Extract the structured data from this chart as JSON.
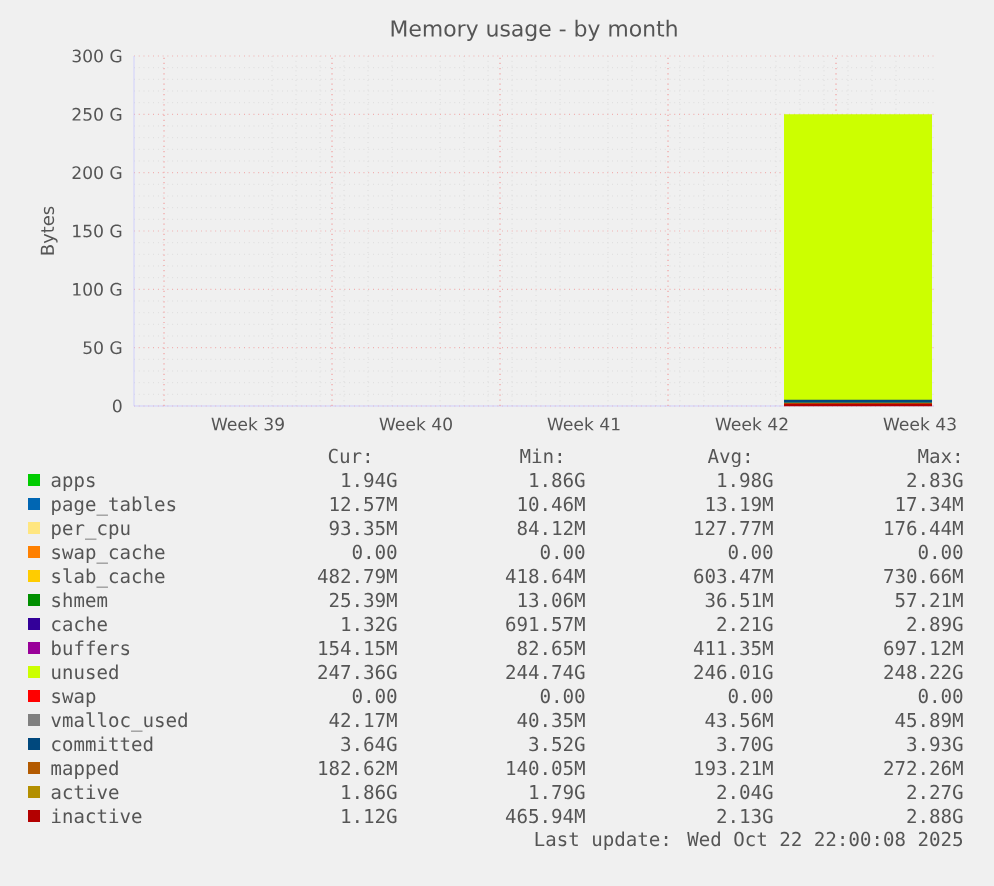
{
  "chart_data": {
    "type": "area",
    "title": "Memory usage - by month",
    "ylabel": "Bytes",
    "grid": true,
    "legend": "bottom",
    "xlim": [
      "2025-09-20T18:00",
      "2025-10-24T02:00"
    ],
    "ylim": [
      0,
      300
    ],
    "xticks": [
      {
        "value": "2025-09-22T00:00",
        "label": null
      },
      {
        "value": "2025-09-25T12:00",
        "label": "Week 39"
      },
      {
        "value": "2025-09-29T00:00",
        "label": null
      },
      {
        "value": "2025-10-02T12:00",
        "label": "Week 40"
      },
      {
        "value": "2025-10-06T00:00",
        "label": null
      },
      {
        "value": "2025-10-09T12:00",
        "label": "Week 41"
      },
      {
        "value": "2025-10-13T00:00",
        "label": null
      },
      {
        "value": "2025-10-16T12:00",
        "label": "Week 42"
      },
      {
        "value": "2025-10-20T00:00",
        "label": null
      },
      {
        "value": "2025-10-23T12:00",
        "label": "Week 43"
      }
    ],
    "yticks": [
      0,
      {
        "value": 50,
        "label": "50 G"
      },
      {
        "value": 100,
        "label": "100 G"
      },
      {
        "value": 150,
        "label": "150 G"
      },
      {
        "value": 200,
        "label": "200 G"
      },
      {
        "value": 250,
        "label": "250 G"
      },
      {
        "value": 300,
        "label": "300 G"
      }
    ],
    "x": [
      "2025-10-17T20:00",
      "2025-10-20T16:00",
      "2025-10-23T11:00",
      "2025-10-24T00:00"
    ],
    "series": [
      {
        "name": "apps",
        "color": "#00cc00",
        "values": [
          null,
          null,
          null,
          null
        ]
      },
      {
        "name": "page_tables",
        "color": "#0066b3",
        "values": [
          null,
          null,
          null,
          null
        ]
      },
      {
        "name": "per_cpu",
        "color": "#ffe680",
        "values": [
          null,
          null,
          null,
          null
        ]
      },
      {
        "name": "swap_cache",
        "color": "#ff8000",
        "values": [
          null,
          null,
          null,
          null
        ]
      },
      {
        "name": "slab_cache",
        "color": "#ffcc00",
        "values": [
          null,
          null,
          null,
          null
        ]
      },
      {
        "name": "shmem",
        "color": "#008f00",
        "values": [
          null,
          null,
          null,
          null
        ]
      },
      {
        "name": "cache",
        "color": "#330099",
        "values": [
          null,
          null,
          null,
          null
        ]
      },
      {
        "name": "buffers",
        "color": "#990099",
        "values": [
          null,
          null,
          null,
          null
        ]
      },
      {
        "name": "unused",
        "color": "#ccff00",
        "values": [
          250,
          250,
          250,
          250
        ]
      },
      {
        "name": "swap",
        "color": "#ff0000",
        "values": [
          null,
          null,
          null,
          null
        ]
      },
      {
        "name": "vmalloc_used",
        "type": "line",
        "color": "#808080",
        "values": [
          null,
          null,
          null,
          null
        ]
      },
      {
        "name": "committed",
        "type": "line",
        "color": "#00487d",
        "values": [
          4,
          4,
          4,
          4
        ]
      },
      {
        "name": "mapped",
        "type": "line",
        "color": "#b35a00",
        "values": [
          null,
          null,
          null,
          null
        ]
      },
      {
        "name": "active",
        "type": "line",
        "color": "#b38f00",
        "values": [
          null,
          null,
          null,
          null
        ]
      },
      {
        "name": "inactive",
        "type": "line",
        "color": "#b30000",
        "values": [
          1,
          1,
          1,
          1
        ]
      }
    ],
    "annotations": [
      "Cur:",
      "Min:",
      "Avg:",
      "Max:",
      "1.94G",
      "1.86G",
      "1.98G",
      "2.83G",
      "12.57M",
      "10.46M",
      "13.19M",
      "17.34M",
      "93.35M",
      "84.12M",
      "127.77M",
      "176.44M",
      "0.00",
      "0.00",
      "0.00",
      "0.00",
      "482.79M",
      "418.64M",
      "603.47M",
      "730.66M",
      "25.39M",
      "13.06M",
      "36.51M",
      "57.21M",
      "1.32G",
      "691.57M",
      "2.21G",
      "2.89G",
      "154.15M",
      "82.65M",
      "411.35M",
      "697.12M",
      "247.36G",
      "244.74G",
      "246.01G",
      "248.22G",
      "0.00",
      "0.00",
      "0.00",
      "0.00",
      "42.17M",
      "40.35M",
      "43.56M",
      "45.89M",
      "3.64G",
      "3.52G",
      "3.70G",
      "3.93G",
      "182.62M",
      "140.05M",
      "193.21M",
      "272.26M",
      "1.86G",
      "1.79G",
      "2.04G",
      "2.27G",
      "1.12G",
      "465.94M",
      "2.13G",
      "2.88G",
      "Last update: Wed Oct 22 22:00:08 2025"
    ]
  }
}
